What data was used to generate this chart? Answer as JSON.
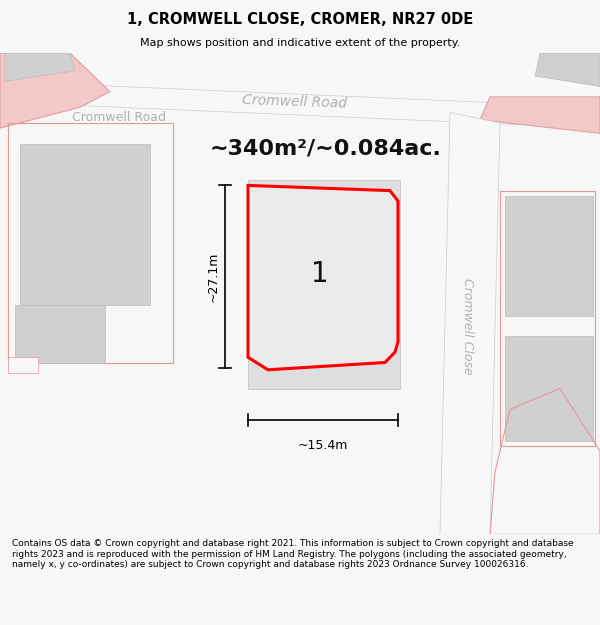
{
  "title": "1, CROMWELL CLOSE, CROMER, NR27 0DE",
  "subtitle": "Map shows position and indicative extent of the property.",
  "footer": "Contains OS data © Crown copyright and database right 2021. This information is subject to Crown copyright and database rights 2023 and is reproduced with the permission of HM Land Registry. The polygons (including the associated geometry, namely x, y co-ordinates) are subject to Crown copyright and database rights 2023 Ordnance Survey 100026316.",
  "area_label": "~340m²/~0.084ac.",
  "plot_number": "1",
  "dim_height": "~27.1m",
  "dim_width": "~15.4m",
  "road_label_left": "Cromwell Road",
  "road_label_center": "Cromwell Road",
  "road_label_close": "Cromwell Close",
  "bg_color": "#f7f7f7",
  "map_bg": "#ffffff",
  "building_fill": "#d0d0d0",
  "building_edge": "#bbbbbb",
  "pink_fill": "#f2c8c8",
  "pink_edge": "#e09898",
  "plot_fill": "#ebebeb",
  "plot_outline": "#ff0000",
  "road_color": "#f0f0f0",
  "road_text_color": "#b0b0b0",
  "dim_color": "#000000",
  "title_color": "#000000"
}
